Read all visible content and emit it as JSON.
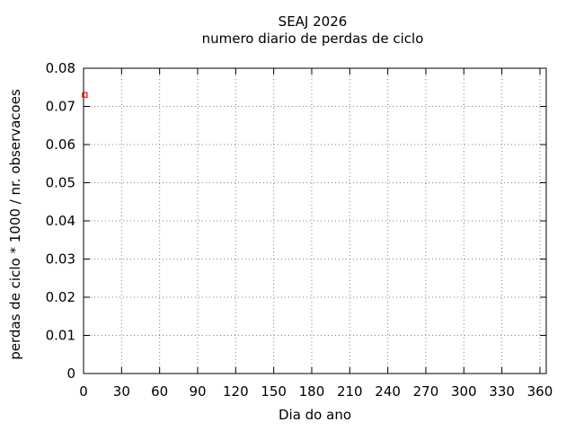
{
  "chart_data": {
    "type": "scatter",
    "title": "SEAJ 2026",
    "subtitle": "numero diario de perdas de ciclo",
    "xlabel": "Dia do ano",
    "ylabel": "perdas de ciclo * 1000 / nr. observacoes",
    "xlim": [
      0,
      365
    ],
    "ylim": [
      0,
      0.08
    ],
    "xticks": [
      0,
      30,
      60,
      90,
      120,
      150,
      180,
      210,
      240,
      270,
      300,
      330,
      360
    ],
    "xtick_labels": [
      "0",
      "30",
      "60",
      "90",
      "120",
      "150",
      "180",
      "210",
      "240",
      "270",
      "300",
      "330",
      "360"
    ],
    "yticks": [
      0,
      0.01,
      0.02,
      0.03,
      0.04,
      0.05,
      0.06,
      0.07,
      0.08
    ],
    "ytick_labels": [
      "0",
      "0.01",
      "0.02",
      "0.03",
      "0.04",
      "0.05",
      "0.06",
      "0.07",
      "0.08"
    ],
    "grid": true,
    "legend_position": "none",
    "series": [
      {
        "marker": "open-square",
        "color": "#ff0000",
        "points": [
          {
            "x": 1,
            "y": 0.073
          }
        ]
      }
    ],
    "colors": {
      "background": "#ffffff",
      "border": "#000000",
      "grid": "#808080",
      "text": "#000000",
      "marker": "#ff0000"
    }
  }
}
